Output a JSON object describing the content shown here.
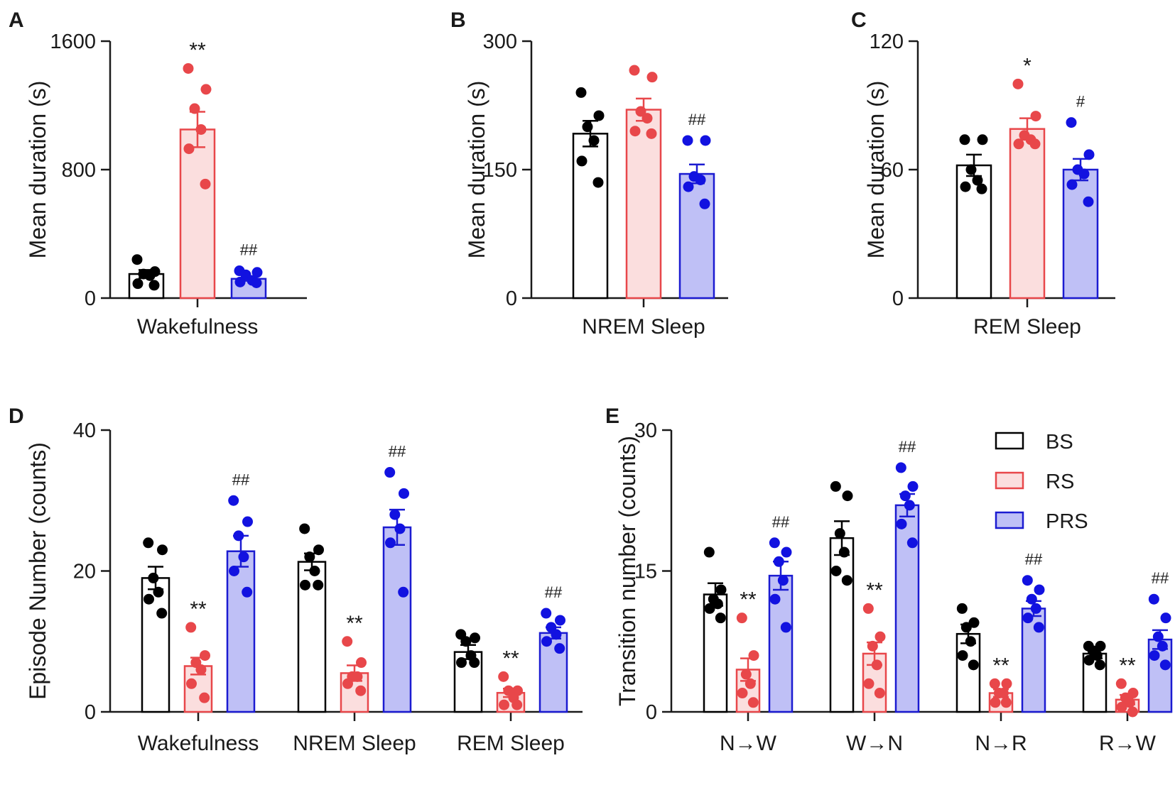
{
  "colors": {
    "BS": {
      "stroke": "#000000",
      "fill": "#ffffff",
      "dot": "#000000"
    },
    "RS": {
      "stroke": "#e8474a",
      "fill": "#fbdede",
      "dot": "#e8474a"
    },
    "PRS": {
      "stroke": "#1b1bd1",
      "fill": "#bfc0f6",
      "dot": "#1212e0"
    }
  },
  "legend": {
    "items": [
      "BS",
      "RS",
      "PRS"
    ]
  },
  "chart_data": [
    {
      "id": "A",
      "letter": "A",
      "type": "bar",
      "ylabel": "Mean duration (s)",
      "ylim": [
        0,
        1600
      ],
      "yticks": [
        "0",
        "800",
        "1600"
      ],
      "categories": [
        "Wakefulness"
      ],
      "series": [
        {
          "name": "BS",
          "values": [
            150
          ],
          "sem": [
            25
          ],
          "points": [
            [
              240,
              165,
              150,
              140,
              90,
              80
            ]
          ],
          "sig": [
            ""
          ]
        },
        {
          "name": "RS",
          "values": [
            1050
          ],
          "sem": [
            110
          ],
          "points": [
            [
              1430,
              1300,
              1180,
              1050,
              930,
              710
            ]
          ],
          "sig": [
            "**"
          ]
        },
        {
          "name": "PRS",
          "values": [
            120
          ],
          "sem": [
            12
          ],
          "points": [
            [
              170,
              160,
              145,
              110,
              100,
              95
            ]
          ],
          "sig": [
            "##"
          ]
        }
      ]
    },
    {
      "id": "B",
      "letter": "B",
      "type": "bar",
      "ylabel": "Mean duration (s)",
      "ylim": [
        0,
        300
      ],
      "yticks": [
        "0",
        "150",
        "300"
      ],
      "categories": [
        "NREM Sleep"
      ],
      "series": [
        {
          "name": "BS",
          "values": [
            192
          ],
          "sem": [
            15
          ],
          "points": [
            [
              240,
              213,
              200,
              184,
              160,
              135
            ]
          ],
          "sig": [
            ""
          ]
        },
        {
          "name": "RS",
          "values": [
            220
          ],
          "sem": [
            13
          ],
          "points": [
            [
              266,
              258,
              218,
              210,
              195,
              192
            ]
          ],
          "sig": [
            ""
          ]
        },
        {
          "name": "PRS",
          "values": [
            145
          ],
          "sem": [
            11
          ],
          "points": [
            [
              184,
              184,
              142,
              138,
              130,
              110
            ]
          ],
          "sig": [
            "##"
          ]
        }
      ]
    },
    {
      "id": "C",
      "letter": "C",
      "type": "bar",
      "ylabel": "Mean duration (s)",
      "ylim": [
        0,
        120
      ],
      "yticks": [
        "0",
        "60",
        "120"
      ],
      "categories": [
        "REM Sleep"
      ],
      "series": [
        {
          "name": "BS",
          "values": [
            62
          ],
          "sem": [
            5
          ],
          "points": [
            [
              74,
              74,
              60,
              55,
              52,
              51
            ]
          ],
          "sig": [
            ""
          ]
        },
        {
          "name": "RS",
          "values": [
            79
          ],
          "sem": [
            5
          ],
          "points": [
            [
              100,
              85,
              76,
              74,
              72,
              72
            ]
          ],
          "sig": [
            "*"
          ]
        },
        {
          "name": "PRS",
          "values": [
            60
          ],
          "sem": [
            5
          ],
          "points": [
            [
              82,
              67,
              60,
              58,
              53,
              45
            ]
          ],
          "sig": [
            "#"
          ]
        }
      ]
    },
    {
      "id": "D",
      "letter": "D",
      "type": "bar",
      "ylabel": "Episode Number (counts)",
      "ylim": [
        0,
        40
      ],
      "yticks": [
        "0",
        "20",
        "40"
      ],
      "categories": [
        "Wakefulness",
        "NREM Sleep",
        "REM Sleep"
      ],
      "series": [
        {
          "name": "BS",
          "values": [
            19,
            21.3,
            8.5
          ],
          "sem": [
            1.6,
            1.2,
            1.0
          ],
          "points": [
            [
              24,
              23,
              19,
              17,
              16,
              14
            ],
            [
              26,
              23,
              22,
              20,
              18,
              18
            ],
            [
              11,
              10.5,
              10,
              8,
              7,
              7
            ]
          ],
          "sig": [
            "",
            "",
            ""
          ]
        },
        {
          "name": "RS",
          "values": [
            6.5,
            5.5,
            2.7
          ],
          "sem": [
            1.2,
            1.1,
            0.6
          ],
          "points": [
            [
              12,
              8,
              7,
              6,
              4,
              2
            ],
            [
              10,
              7,
              5,
              5,
              4,
              3
            ],
            [
              5,
              3,
              3,
              2,
              1,
              1
            ]
          ],
          "sig": [
            "**",
            "**",
            "**"
          ]
        },
        {
          "name": "PRS",
          "values": [
            22.8,
            26.2,
            11.2
          ],
          "sem": [
            2.2,
            2.5,
            0.8
          ],
          "points": [
            [
              30,
              27,
              25,
              22,
              20,
              17
            ],
            [
              34,
              31,
              28,
              26,
              24,
              17
            ],
            [
              14,
              13,
              12,
              11,
              10,
              9
            ]
          ],
          "sig": [
            "##",
            "##",
            "##"
          ]
        }
      ]
    },
    {
      "id": "E",
      "letter": "E",
      "type": "bar",
      "ylabel": "Transition number (counts)",
      "ylim": [
        0,
        30
      ],
      "yticks": [
        "0",
        "15",
        "30"
      ],
      "categories": [
        "N→W",
        "W→N",
        "N→R",
        "R→W"
      ],
      "series": [
        {
          "name": "BS",
          "values": [
            12.5,
            18.5,
            8.3,
            6.2
          ],
          "sem": [
            1.2,
            1.8,
            1.0,
            0.5
          ],
          "points": [
            [
              17,
              13,
              12,
              11.5,
              11,
              10
            ],
            [
              24,
              23,
              19,
              17,
              15,
              14
            ],
            [
              11,
              9.5,
              9,
              7.5,
              6,
              5
            ],
            [
              7,
              7,
              6.5,
              6,
              5.5,
              5
            ]
          ],
          "sig": [
            "",
            "",
            "",
            ""
          ]
        },
        {
          "name": "RS",
          "values": [
            4.5,
            6.2,
            2.0,
            1.3
          ],
          "sem": [
            1.2,
            1.2,
            0.4,
            0.5
          ],
          "points": [
            [
              10,
              6,
              4,
              3,
              2,
              1
            ],
            [
              11,
              8,
              7,
              5,
              3,
              2
            ],
            [
              3,
              3,
              2,
              2,
              1,
              1
            ],
            [
              3,
              2,
              1.5,
              1,
              0.5,
              0
            ]
          ],
          "sig": [
            "**",
            "**",
            "**",
            "**"
          ]
        },
        {
          "name": "PRS",
          "values": [
            14.5,
            22.0,
            11.0,
            7.7
          ],
          "sem": [
            1.5,
            1.2,
            0.8,
            1.0
          ],
          "points": [
            [
              18,
              17,
              16,
              14,
              12,
              9
            ],
            [
              26,
              24,
              23,
              22,
              20,
              18
            ],
            [
              14,
              13,
              12,
              11,
              10,
              9
            ],
            [
              12,
              10,
              8,
              7,
              6,
              5
            ]
          ],
          "sig": [
            "##",
            "##",
            "##",
            "##"
          ]
        }
      ]
    }
  ]
}
